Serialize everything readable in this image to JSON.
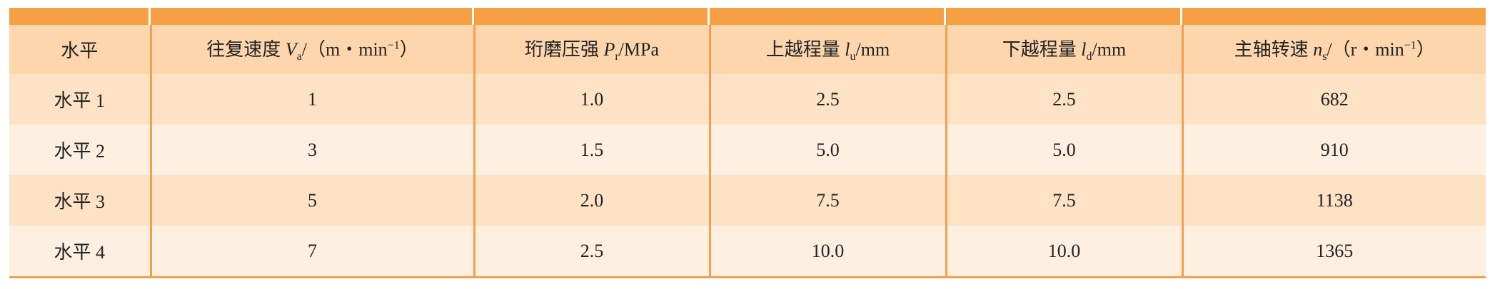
{
  "table": {
    "header": [
      "水平",
      {
        "name": "往复速度",
        "symbol": "V",
        "sub": "a",
        "unit": "/（m・min",
        "sup": "−1",
        "close": "）"
      },
      {
        "name": "珩磨压强",
        "symbol": "P",
        "sub": "r",
        "unit": "/MPa"
      },
      {
        "name": "上越程量",
        "symbol": "l",
        "sub": "u",
        "unit": "/mm"
      },
      {
        "name": "下越程量",
        "symbol": "l",
        "sub": "d",
        "unit": "/mm"
      },
      {
        "name": "主轴转速",
        "symbol": "n",
        "sub": "s",
        "unit": "/（r・min",
        "sup": "−1",
        "close": "）"
      }
    ],
    "rows": [
      [
        "水平 1",
        "1",
        "1.0",
        "2.5",
        "2.5",
        "682"
      ],
      [
        "水平 2",
        "3",
        "1.5",
        "5.0",
        "5.0",
        "910"
      ],
      [
        "水平 3",
        "5",
        "2.0",
        "7.5",
        "7.5",
        "1138"
      ],
      [
        "水平 4",
        "7",
        "2.5",
        "10.0",
        "10.0",
        "1365"
      ]
    ]
  }
}
